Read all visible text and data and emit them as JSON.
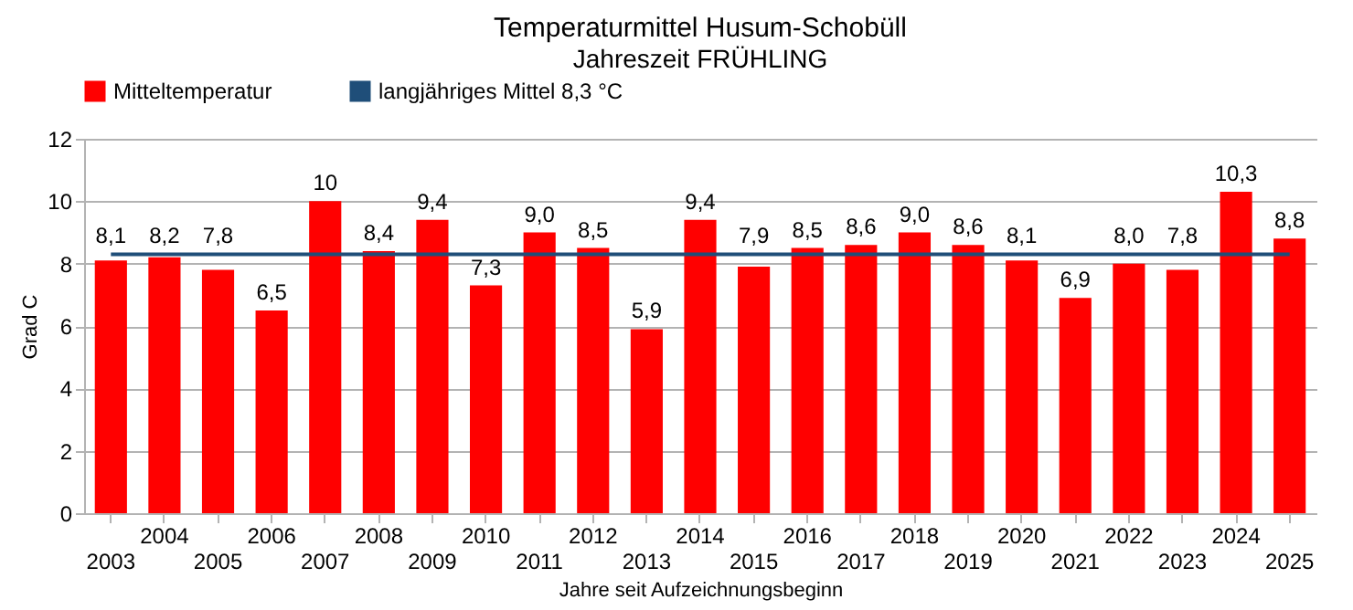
{
  "chart_data": {
    "type": "bar",
    "title": "Temperaturmittel  Husum-Schobüll",
    "subtitle": "Jahreszeit  FRÜHLING",
    "xlabel": "Jahre seit Aufzeichnungsbeginn",
    "ylabel": "Grad C",
    "categories": [
      "2003",
      "2004",
      "2005",
      "2006",
      "2007",
      "2008",
      "2009",
      "2010",
      "2011",
      "2012",
      "2013",
      "2014",
      "2015",
      "2016",
      "2017",
      "2018",
      "2019",
      "2020",
      "2021",
      "2022",
      "2023",
      "2024",
      "2025"
    ],
    "series": [
      {
        "name": "Mitteltemperatur",
        "color": "#ff0000",
        "values": [
          8.1,
          8.2,
          7.8,
          6.5,
          10,
          8.4,
          9.4,
          7.3,
          9.0,
          8.5,
          5.9,
          9.4,
          7.9,
          8.5,
          8.6,
          9.0,
          8.6,
          8.1,
          6.9,
          8.0,
          7.8,
          10.3,
          8.8
        ],
        "value_labels": [
          "8,1",
          "8,2",
          "7,8",
          "6,5",
          "10",
          "8,4",
          "9,4",
          "7,3",
          "9,0",
          "8,5",
          "5,9",
          "9,4",
          "7,9",
          "8,5",
          "8,6",
          "9,0",
          "8,6",
          "8,1",
          "6,9",
          "8,0",
          "7,8",
          "10,3",
          "8,8"
        ]
      },
      {
        "name": "langjähriges Mittel 8,3 °C",
        "type": "line",
        "color": "#1f4e79",
        "values": [
          8.3,
          8.3,
          8.3,
          8.3,
          8.3,
          8.3,
          8.3,
          8.3,
          8.3,
          8.3,
          8.3,
          8.3,
          8.3,
          8.3,
          8.3,
          8.3,
          8.3,
          8.3,
          8.3,
          8.3,
          8.3,
          8.3,
          8.3
        ]
      }
    ],
    "ylim": [
      0,
      12
    ],
    "yticks": [
      0,
      2,
      4,
      6,
      8,
      10,
      12
    ],
    "grid": "y",
    "legend": "top",
    "marker": "none",
    "line_style": "solid"
  }
}
